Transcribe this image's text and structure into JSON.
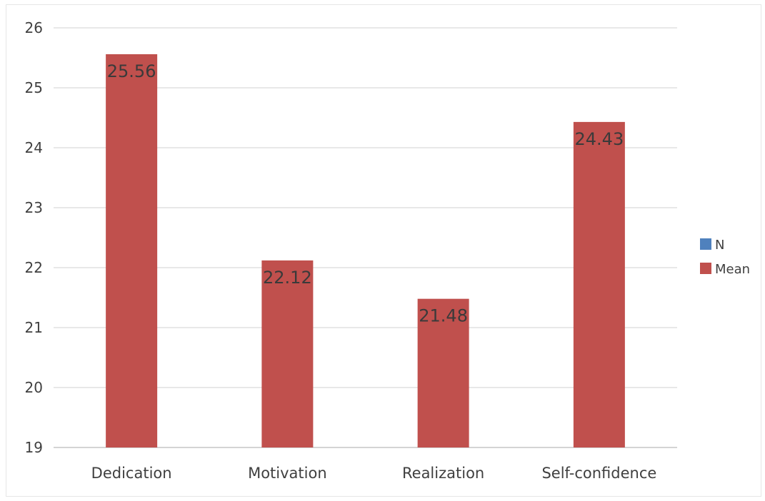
{
  "chart_data": {
    "type": "bar",
    "categories": [
      "Dedication",
      "Motivation",
      "Realization",
      "Self-confidence"
    ],
    "series": [
      {
        "name": "N",
        "values": [
          null,
          null,
          null,
          null
        ],
        "color": "#4f81bd"
      },
      {
        "name": "Mean",
        "values": [
          25.56,
          22.12,
          21.48,
          24.43
        ],
        "color": "#c0504d"
      }
    ],
    "data_labels": [
      "25.56",
      "22.12",
      "21.48",
      "24.43"
    ],
    "yticks": [
      "19",
      "20",
      "21",
      "22",
      "23",
      "24",
      "25",
      "26"
    ],
    "ylim": [
      19,
      26
    ],
    "grid": true,
    "legend": "right"
  }
}
